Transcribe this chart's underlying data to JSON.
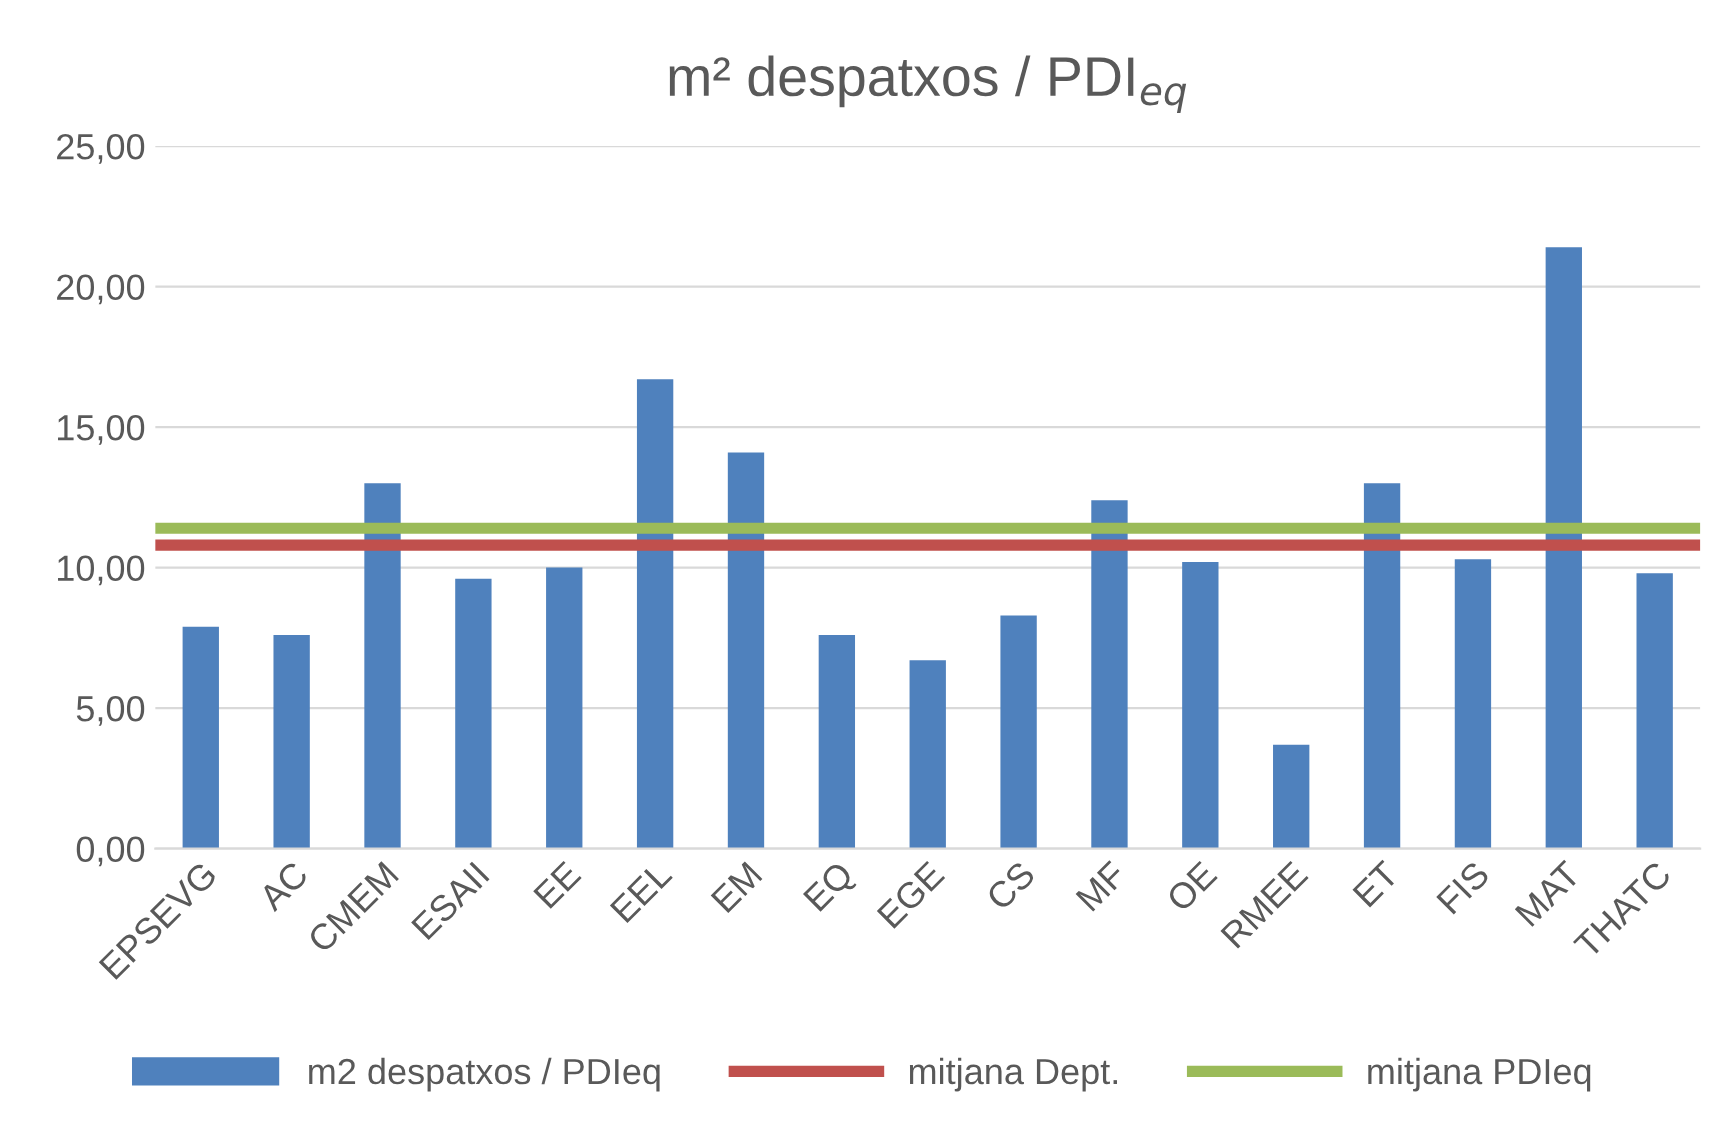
{
  "chart_data": {
    "type": "bar",
    "title": "m² despatxos / PDI$_{eq}$",
    "categories": [
      "EPSEVG",
      "AC",
      "CMEM",
      "ESAII",
      "EE",
      "EEL",
      "EM",
      "EQ",
      "EGE",
      "CS",
      "MF",
      "OE",
      "RMEE",
      "ET",
      "FIS",
      "MAT",
      "THATC"
    ],
    "series": [
      {
        "name": "m2 despatxos / PDIeq",
        "color": "#4f81bd",
        "values": [
          7.9,
          7.6,
          13.0,
          9.6,
          10.0,
          16.7,
          14.1,
          7.6,
          6.7,
          8.3,
          12.4,
          10.2,
          3.7,
          13.0,
          10.3,
          21.4,
          9.8
        ]
      }
    ],
    "ref_lines": [
      {
        "axis": "y",
        "value": 10.8,
        "label": "mitjana Dept.",
        "color": "#c0504d"
      },
      {
        "axis": "y",
        "value": 11.4,
        "label": "mitjana PDIeq",
        "color": "#9bbb59"
      }
    ],
    "ylim": [
      0,
      25
    ],
    "yticks": [
      {
        "value": 0,
        "label": "0,00"
      },
      {
        "value": 5,
        "label": "5,00"
      },
      {
        "value": 10,
        "label": "10,00"
      },
      {
        "value": 15,
        "label": "15,00"
      },
      {
        "value": 20,
        "label": "20,00"
      },
      {
        "value": 25,
        "label": "25,00"
      }
    ],
    "grid": "y",
    "legend": "bottom"
  }
}
